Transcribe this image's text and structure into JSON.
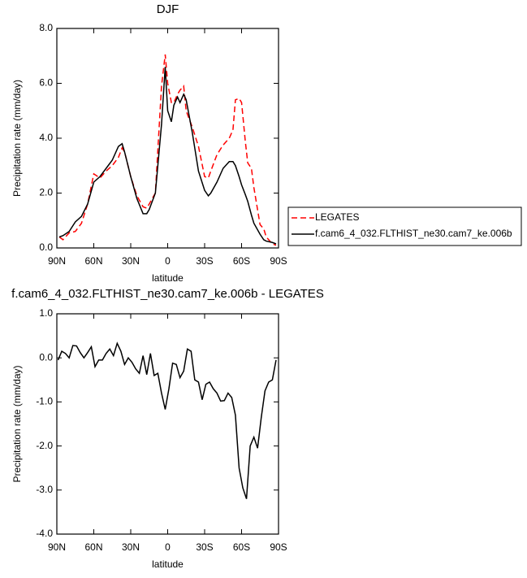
{
  "chart_data": [
    {
      "type": "line",
      "title": "DJF",
      "xlabel": "latitude",
      "ylabel": "Precipitation rate (mm/day)",
      "x": [
        88,
        85,
        80,
        75,
        70,
        65,
        60,
        55,
        50,
        45,
        40,
        37,
        35,
        30,
        25,
        20,
        17,
        15,
        10,
        5,
        2,
        0,
        -3,
        -5,
        -8,
        -10,
        -13,
        -15,
        -20,
        -25,
        -30,
        -33,
        -35,
        -40,
        -45,
        -50,
        -53,
        -55,
        -58,
        -60,
        -63,
        -65,
        -68,
        -70,
        -75,
        -78,
        -80,
        -85,
        -88
      ],
      "series": [
        {
          "name": "LEGATES",
          "color": "#ff0000",
          "line_style": "dashed",
          "values": [
            0.4,
            0.3,
            0.55,
            0.6,
            0.9,
            1.6,
            2.7,
            2.55,
            2.8,
            3.0,
            3.3,
            3.65,
            3.5,
            2.6,
            1.9,
            1.5,
            1.45,
            1.6,
            2.0,
            5.9,
            7.05,
            6.0,
            5.3,
            5.3,
            5.6,
            5.75,
            5.9,
            5.0,
            4.4,
            3.7,
            2.6,
            2.55,
            2.8,
            3.4,
            3.75,
            4.0,
            4.3,
            5.4,
            5.45,
            5.3,
            3.9,
            3.1,
            2.9,
            2.2,
            0.85,
            0.7,
            0.4,
            0.15,
            0.1
          ]
        },
        {
          "name": "f.cam6_4_032.FLTHIST_ne30.cam7_ke.006b",
          "color": "#000000",
          "line_style": "solid",
          "values": [
            0.4,
            0.45,
            0.6,
            0.95,
            1.15,
            1.6,
            2.4,
            2.6,
            2.9,
            3.2,
            3.7,
            3.8,
            3.5,
            2.6,
            1.8,
            1.25,
            1.25,
            1.4,
            2.0,
            4.5,
            6.6,
            5.0,
            4.6,
            5.2,
            5.5,
            5.3,
            5.6,
            5.4,
            4.2,
            2.8,
            2.1,
            1.9,
            2.0,
            2.4,
            2.9,
            3.15,
            3.15,
            3.0,
            2.6,
            2.3,
            1.95,
            1.7,
            1.2,
            0.9,
            0.5,
            0.3,
            0.25,
            0.2,
            0.15
          ]
        }
      ],
      "xlim": [
        90,
        -90
      ],
      "xticks": [
        {
          "value": 90,
          "label": "90N"
        },
        {
          "value": 60,
          "label": "60N"
        },
        {
          "value": 30,
          "label": "30N"
        },
        0,
        {
          "value": -30,
          "label": "30S"
        },
        {
          "value": -60,
          "label": "60S"
        },
        {
          "value": -90,
          "label": "90S"
        }
      ],
      "ylim": [
        0,
        8
      ],
      "yticks": [
        {
          "value": 0,
          "label": "0.0"
        },
        {
          "value": 2,
          "label": "2.0"
        },
        {
          "value": 4,
          "label": "4.0"
        },
        {
          "value": 6,
          "label": "6.0"
        },
        {
          "value": 8,
          "label": "8.0"
        }
      ],
      "legend": "right"
    },
    {
      "type": "line",
      "title": "f.cam6_4_032.FLTHIST_ne30.cam7_ke.006b - LEGATES",
      "xlabel": "latitude",
      "ylabel": "Precipitation rate (mm/day)",
      "x": [
        89,
        86,
        83,
        80,
        77,
        74,
        71,
        68,
        65,
        62,
        59,
        56,
        53,
        50,
        47,
        44,
        41,
        38,
        35,
        32,
        29,
        26,
        23,
        20,
        17,
        14,
        11,
        8,
        5,
        2,
        -1,
        -4,
        -7,
        -10,
        -13,
        -16,
        -19,
        -22,
        -25,
        -28,
        -31,
        -34,
        -37,
        -40,
        -43,
        -46,
        -49,
        -52,
        -55,
        -58,
        -61,
        -64,
        -67,
        -70,
        -73,
        -76,
        -79,
        -82,
        -85,
        -88
      ],
      "series": [
        {
          "color": "#000000",
          "line_style": "solid",
          "values": [
            -0.05,
            0.15,
            0.1,
            0.0,
            0.28,
            0.27,
            0.12,
            0.0,
            0.12,
            0.25,
            -0.2,
            -0.05,
            -0.05,
            0.1,
            0.2,
            0.05,
            0.33,
            0.15,
            -0.15,
            0.0,
            -0.1,
            -0.25,
            -0.35,
            0.05,
            -0.38,
            0.1,
            -0.4,
            -0.35,
            -0.8,
            -1.17,
            -0.7,
            -0.12,
            -0.15,
            -0.45,
            -0.3,
            0.2,
            0.15,
            -0.5,
            -0.55,
            -0.95,
            -0.6,
            -0.55,
            -0.7,
            -0.8,
            -0.98,
            -0.97,
            -0.8,
            -0.9,
            -1.3,
            -2.5,
            -2.95,
            -3.2,
            -2.0,
            -1.8,
            -2.05,
            -1.35,
            -0.75,
            -0.55,
            -0.5,
            -0.05
          ]
        }
      ],
      "xlim": [
        90,
        -90
      ],
      "xticks": [
        {
          "value": 90,
          "label": "90N"
        },
        {
          "value": 60,
          "label": "60N"
        },
        {
          "value": 30,
          "label": "30N"
        },
        0,
        {
          "value": -30,
          "label": "30S"
        },
        {
          "value": -60,
          "label": "60S"
        },
        {
          "value": -90,
          "label": "90S"
        }
      ],
      "ylim": [
        -4,
        1
      ],
      "yticks": [
        {
          "value": -4,
          "label": "-4.0"
        },
        {
          "value": -3,
          "label": "-3.0"
        },
        {
          "value": -2,
          "label": "-2.0"
        },
        {
          "value": -1,
          "label": "-1.0"
        },
        {
          "value": 0,
          "label": "0.0"
        },
        {
          "value": 1,
          "label": "1.0"
        }
      ]
    }
  ]
}
